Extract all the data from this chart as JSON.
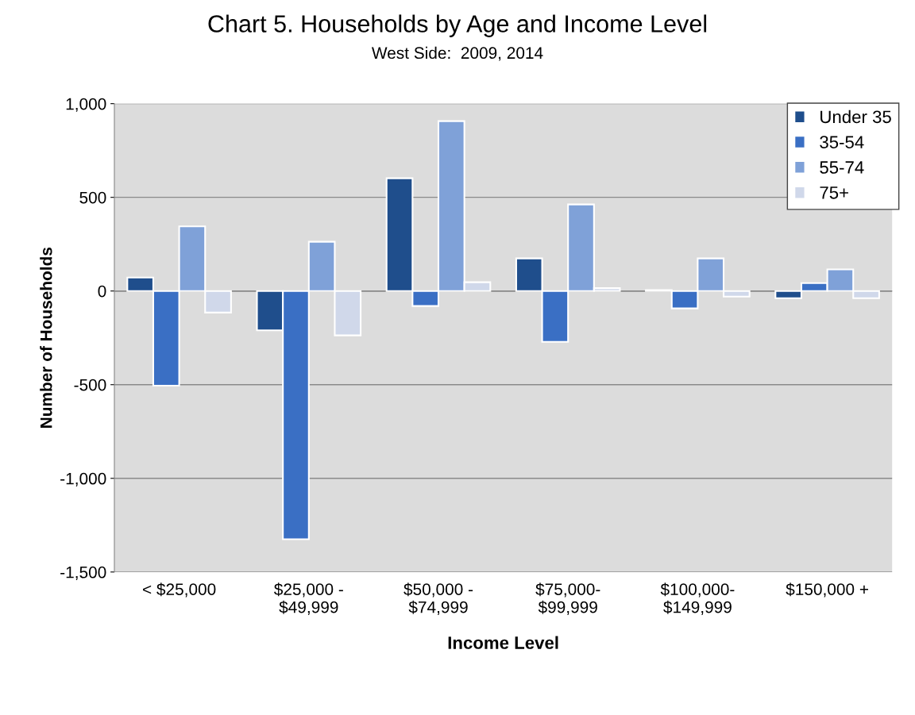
{
  "chart_data": {
    "type": "bar",
    "title": "Chart 5. Households by Age and Income Level",
    "subtitle": "West Side:  2009, 2014",
    "xlabel": "Income Level",
    "ylabel": "Number of Households",
    "categories": [
      "< $25,000",
      "$25,000 -\n$49,999",
      "$50,000 -\n$74,999",
      "$75,000-\n$99,999",
      "$100,000-\n$149,999",
      "$150,000 +"
    ],
    "series": [
      {
        "name": "Under 35",
        "color": "#1f4e8c",
        "values": [
          72,
          -210,
          602,
          174,
          5,
          -38
        ]
      },
      {
        "name": "35-54",
        "color": "#3a6fc4",
        "values": [
          -505,
          -1325,
          -80,
          -271,
          -93,
          42
        ]
      },
      {
        "name": "55-74",
        "color": "#7fa1d8",
        "values": [
          345,
          263,
          907,
          462,
          174,
          115
        ]
      },
      {
        "name": "75+",
        "color": "#d0d8ea",
        "values": [
          -115,
          -237,
          47,
          15,
          -30,
          -38
        ]
      }
    ],
    "ylim": [
      -1500,
      1000
    ],
    "yticks": [
      {
        "value": -1500,
        "label": "-1,500"
      },
      {
        "value": -1000,
        "label": "-1,000"
      },
      {
        "value": -500,
        "label": "-500"
      },
      {
        "value": 0,
        "label": "0"
      },
      {
        "value": 500,
        "label": "500"
      },
      {
        "value": 1000,
        "label": "1,000"
      }
    ],
    "grid": "y",
    "legend": "top right"
  }
}
